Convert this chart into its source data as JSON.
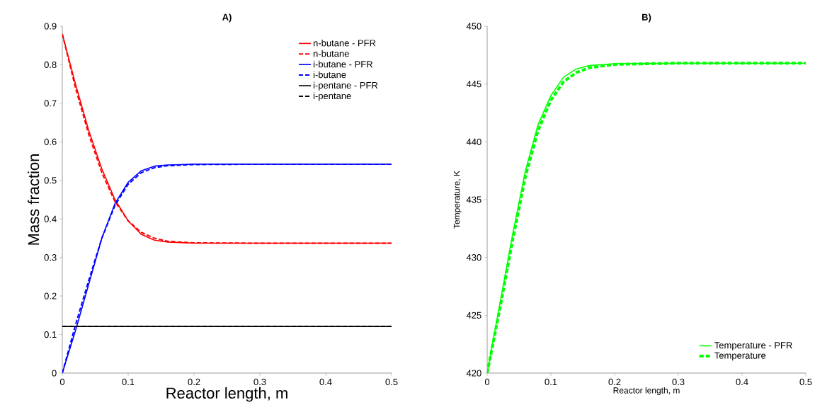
{
  "chart_data": [
    {
      "type": "line",
      "title": "A)",
      "xlabel": "Reactor length, m",
      "ylabel": "Mass fraction",
      "xlim": [
        0,
        0.5
      ],
      "ylim": [
        0,
        0.9
      ],
      "xticks": [
        0,
        0.1,
        0.2,
        0.3,
        0.4,
        0.5
      ],
      "yticks": [
        0,
        0.1,
        0.2,
        0.3,
        0.4,
        0.5,
        0.6,
        0.7,
        0.8,
        0.9
      ],
      "legend": "top right",
      "grid": false,
      "x": [
        0,
        0.02,
        0.04,
        0.06,
        0.08,
        0.1,
        0.12,
        0.14,
        0.16,
        0.2,
        0.3,
        0.5
      ],
      "series": [
        {
          "name": "n-butane - PFR",
          "color": "#ff0000",
          "line_style": "solid",
          "values": [
            0.88,
            0.75,
            0.63,
            0.53,
            0.45,
            0.395,
            0.36,
            0.345,
            0.34,
            0.337,
            0.337,
            0.337
          ]
        },
        {
          "name": "n-butane",
          "color": "#ff0000",
          "line_style": "dashed",
          "values": [
            0.88,
            0.74,
            0.62,
            0.52,
            0.445,
            0.395,
            0.365,
            0.35,
            0.342,
            0.338,
            0.337,
            0.337
          ]
        },
        {
          "name": "i-butane - PFR",
          "color": "#0000ff",
          "line_style": "solid",
          "values": [
            0,
            0.11,
            0.23,
            0.35,
            0.44,
            0.495,
            0.525,
            0.537,
            0.54,
            0.542,
            0.542,
            0.542
          ]
        },
        {
          "name": "i-butane",
          "color": "#0000ff",
          "line_style": "dashed",
          "values": [
            0,
            0.125,
            0.24,
            0.35,
            0.435,
            0.49,
            0.52,
            0.533,
            0.538,
            0.541,
            0.542,
            0.542
          ]
        },
        {
          "name": "i-pentane - PFR",
          "color": "#000000",
          "line_style": "solid",
          "values": [
            0.121,
            0.121,
            0.121,
            0.121,
            0.121,
            0.121,
            0.121,
            0.121,
            0.121,
            0.121,
            0.121,
            0.121
          ]
        },
        {
          "name": "i-pentane",
          "color": "#000000",
          "line_style": "dashed",
          "values": [
            0.121,
            0.121,
            0.121,
            0.121,
            0.121,
            0.121,
            0.121,
            0.121,
            0.121,
            0.121,
            0.121,
            0.121
          ]
        }
      ]
    },
    {
      "type": "line",
      "title": "B)",
      "xlabel": "Reactor length, m",
      "ylabel": "Temperature, K",
      "xlim": [
        0,
        0.5
      ],
      "ylim": [
        420,
        450
      ],
      "xticks": [
        0,
        0.1,
        0.2,
        0.3,
        0.4,
        0.5
      ],
      "yticks": [
        420,
        425,
        430,
        435,
        440,
        445,
        450
      ],
      "legend": "bottom right",
      "grid": false,
      "x": [
        0,
        0.02,
        0.04,
        0.06,
        0.08,
        0.1,
        0.12,
        0.14,
        0.16,
        0.2,
        0.3,
        0.5
      ],
      "series": [
        {
          "name": "Temperature - PFR",
          "color": "#00ff00",
          "line_style": "solid",
          "values": [
            420,
            426,
            432,
            437.5,
            441.5,
            444,
            445.6,
            446.3,
            446.6,
            446.75,
            446.8,
            446.8
          ]
        },
        {
          "name": "Temperature",
          "color": "#00ff00",
          "line_style": "dashed",
          "values": [
            420,
            425.6,
            431.5,
            437,
            441,
            443.6,
            445.2,
            446,
            446.4,
            446.7,
            446.8,
            446.8
          ]
        }
      ]
    }
  ]
}
